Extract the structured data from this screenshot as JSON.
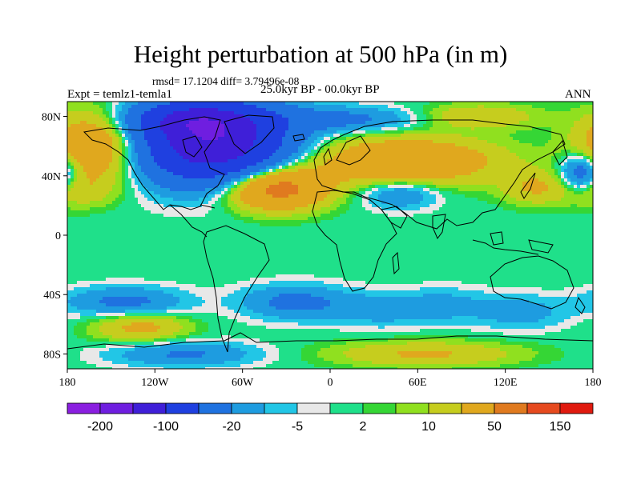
{
  "colors": {
    "palette": [
      "#8a1fe0",
      "#6f1ee0",
      "#3f1fd8",
      "#1f40e0",
      "#1f72e0",
      "#1e9ce0",
      "#22c6e6",
      "#e8e8e8",
      "#1fe08a",
      "#35d635",
      "#90e01f",
      "#c6cd1e",
      "#e0a81e",
      "#e07a1f",
      "#e64a1f",
      "#e01a0f"
    ]
  },
  "chart_data": {
    "type": "heatmap",
    "title": "Height perturbation at 500 hPa (in m)",
    "rmsd_text": "rmsd= 17.1204 diff= 3.79496e-08",
    "left_label": "Expt = temlz1-temla1",
    "center_label": "25.0kyr BP - 00.0kyr BP",
    "right_label": "ANN",
    "xlabel": "",
    "ylabel": "",
    "xlim": [
      -180,
      180
    ],
    "ylim": [
      -90,
      90
    ],
    "x_ticks": [
      {
        "value": -180,
        "label": "180"
      },
      {
        "value": -120,
        "label": "120W"
      },
      {
        "value": -60,
        "label": "60W"
      },
      {
        "value": 0,
        "label": "0"
      },
      {
        "value": 60,
        "label": "60E"
      },
      {
        "value": 120,
        "label": "120E"
      },
      {
        "value": 180,
        "label": "180"
      }
    ],
    "y_ticks": [
      {
        "value": 80,
        "label": "80N"
      },
      {
        "value": 40,
        "label": "40N"
      },
      {
        "value": 0,
        "label": "0"
      },
      {
        "value": -40,
        "label": "40S"
      },
      {
        "value": -80,
        "label": "80S"
      }
    ],
    "colorbar": {
      "levels": [
        "-200",
        "-150",
        "-100",
        "-50",
        "-20",
        "-10",
        "-5",
        "-2",
        "2",
        "5",
        "10",
        "20",
        "50",
        "100",
        "150",
        "200"
      ],
      "labels_shown": [
        "-200",
        "-100",
        "-20",
        "-5",
        "2",
        "10",
        "50",
        "150"
      ]
    },
    "anomaly_centers": [
      {
        "lon": -80,
        "lat": 62,
        "value": -140,
        "amp": 140,
        "sx": 34,
        "sy": 18
      },
      {
        "lon": -95,
        "lat": 78,
        "value": -60,
        "amp": 60,
        "sx": 28,
        "sy": 8
      },
      {
        "lon": -38,
        "lat": 32,
        "value": 70,
        "amp": 70,
        "sx": 24,
        "sy": 10
      },
      {
        "lon": -160,
        "lat": 60,
        "value": 45,
        "amp": 45,
        "sx": 22,
        "sy": 16
      },
      {
        "lon": 50,
        "lat": 50,
        "value": 45,
        "amp": 45,
        "sx": 45,
        "sy": 11
      },
      {
        "lon": 10,
        "lat": 78,
        "value": -25,
        "amp": 25,
        "sx": 40,
        "sy": 6
      },
      {
        "lon": 100,
        "lat": 80,
        "value": 20,
        "amp": 20,
        "sx": 30,
        "sy": 6
      },
      {
        "lon": 48,
        "lat": 28,
        "value": -22,
        "amp": 22,
        "sx": 18,
        "sy": 7
      },
      {
        "lon": 172,
        "lat": 42,
        "value": -40,
        "amp": 40,
        "sx": 10,
        "sy": 9
      },
      {
        "lon": 140,
        "lat": 32,
        "value": 20,
        "amp": 20,
        "sx": 16,
        "sy": 8
      },
      {
        "lon": -175,
        "lat": 30,
        "value": 15,
        "amp": 15,
        "sx": 20,
        "sy": 8
      },
      {
        "lon": -140,
        "lat": -45,
        "value": -25,
        "amp": 25,
        "sx": 28,
        "sy": 7
      },
      {
        "lon": -130,
        "lat": -62,
        "value": 25,
        "amp": 25,
        "sx": 22,
        "sy": 7
      },
      {
        "lon": -25,
        "lat": -45,
        "value": -25,
        "amp": 25,
        "sx": 25,
        "sy": 8
      },
      {
        "lon": 35,
        "lat": -50,
        "value": -15,
        "amp": 15,
        "sx": 25,
        "sy": 8
      },
      {
        "lon": 80,
        "lat": -47,
        "value": -12,
        "amp": 12,
        "sx": 20,
        "sy": 8
      },
      {
        "lon": 130,
        "lat": -52,
        "value": -15,
        "amp": 15,
        "sx": 22,
        "sy": 8
      },
      {
        "lon": 65,
        "lat": -80,
        "value": 22,
        "amp": 22,
        "sx": 45,
        "sy": 6
      },
      {
        "lon": -100,
        "lat": -80,
        "value": -22,
        "amp": 22,
        "sx": 35,
        "sy": 6
      }
    ]
  }
}
